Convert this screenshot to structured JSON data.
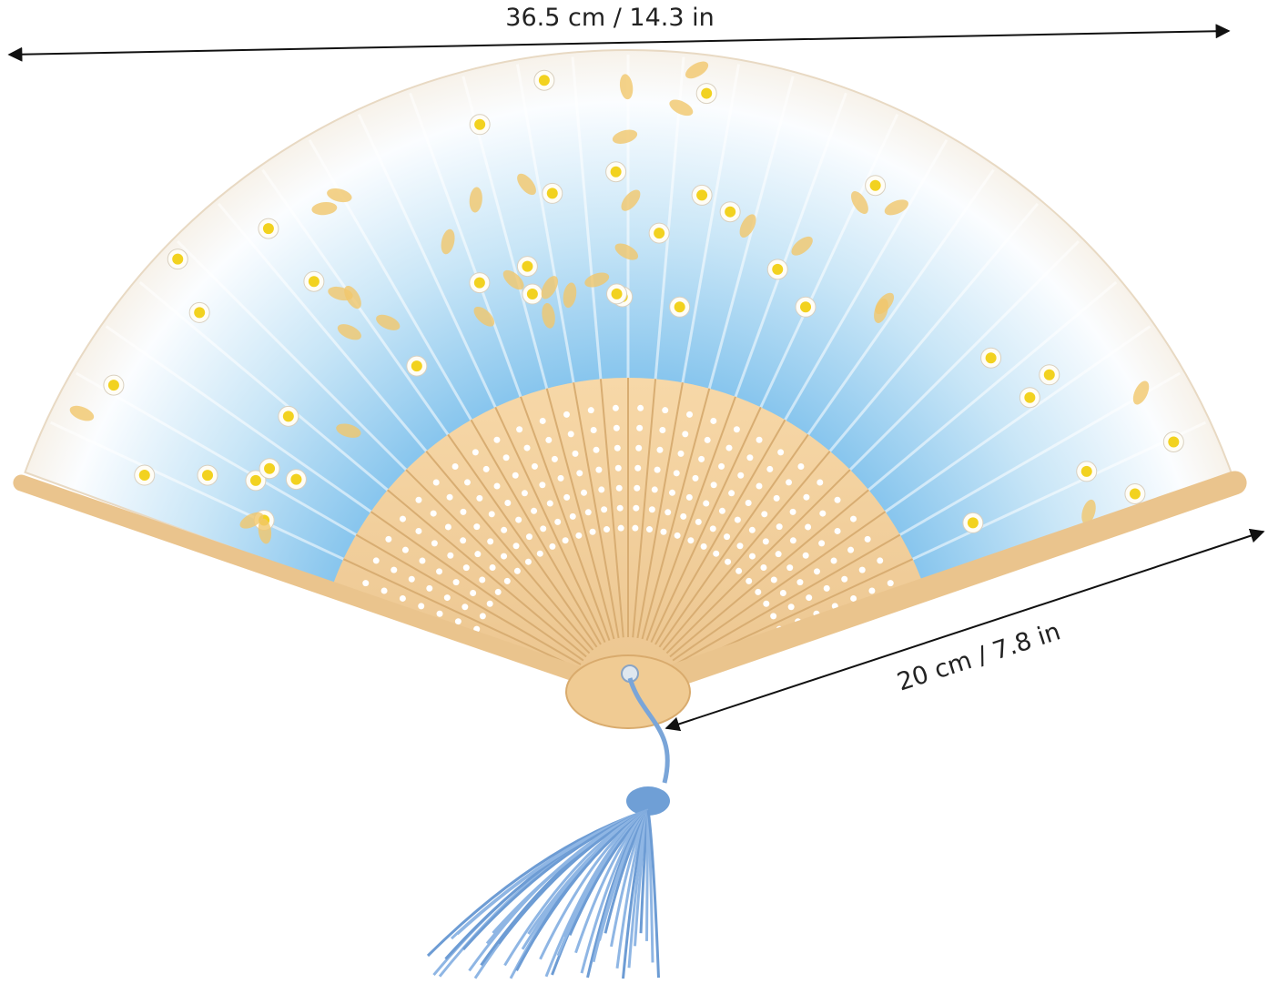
{
  "dimensions": {
    "width": "36.5 cm / 14.3 in",
    "length": "20 cm / 7.8 in"
  }
}
